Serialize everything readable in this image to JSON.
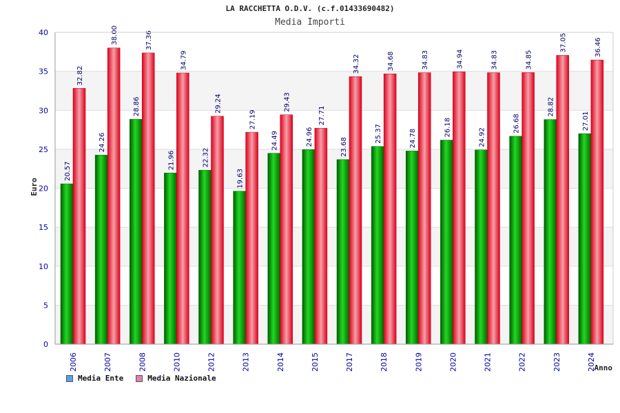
{
  "header": {
    "title": "LA RACCHETTA O.D.V. (c.f.01433690482)",
    "subtitle": "Media Importi"
  },
  "colors": {
    "ente": "#00b400",
    "nazionale": "#e0102a",
    "legend_ente": "#5aa0e8",
    "legend_nazionale": "#e080b0",
    "axis_text": "#0000a0"
  },
  "legend": {
    "ente_label": "Media Ente",
    "nazionale_label": "Media Nazionale"
  },
  "chart_data": {
    "type": "bar",
    "title": "Media Importi",
    "xlabel": "Anno",
    "ylabel": "Euro",
    "ylim": [
      0,
      40
    ],
    "yticks": [
      0,
      5,
      10,
      15,
      20,
      25,
      30,
      35,
      40
    ],
    "categories": [
      "2006",
      "2007",
      "2008",
      "2010",
      "2012",
      "2013",
      "2014",
      "2015",
      "2017",
      "2018",
      "2019",
      "2020",
      "2021",
      "2022",
      "2023",
      "2024"
    ],
    "series": [
      {
        "name": "Media Ente",
        "values": [
          20.57,
          24.26,
          28.86,
          21.96,
          22.32,
          19.63,
          24.49,
          24.96,
          23.68,
          25.37,
          24.78,
          26.18,
          24.92,
          26.68,
          28.82,
          27.01
        ]
      },
      {
        "name": "Media Nazionale",
        "values": [
          32.82,
          38.0,
          37.36,
          34.79,
          29.24,
          27.19,
          29.43,
          27.71,
          34.32,
          34.68,
          34.83,
          34.94,
          34.83,
          34.85,
          37.05,
          36.46
        ]
      }
    ]
  }
}
